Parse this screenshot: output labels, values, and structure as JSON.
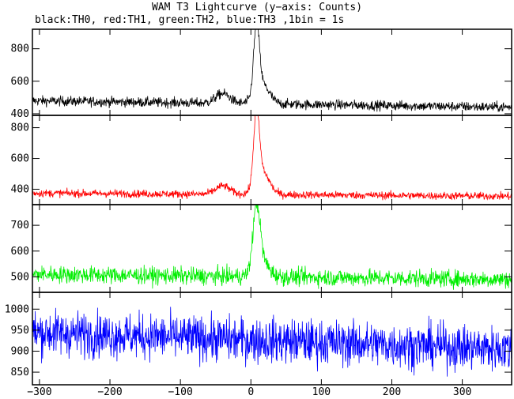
{
  "title": "WAM T3 Lightcurve (y−axis: Counts)",
  "subtitle": "black:TH0, red:TH1, green:TH2, blue:TH3 ,1bin = 1s",
  "chart_data": {
    "type": "line",
    "xlim": [
      -310,
      370
    ],
    "x_ticks": [
      -300,
      -200,
      -100,
      0,
      100,
      200,
      300
    ],
    "x_tick_labels": [
      "−300",
      "−200",
      "−100",
      "0",
      "100",
      "200",
      "300"
    ],
    "bin_seconds": 1,
    "panels": [
      {
        "name": "TH0",
        "color": "#000000",
        "ylim": [
          390,
          920
        ],
        "y_ticks": [
          400,
          600,
          800
        ],
        "baseline": 480,
        "noise": 22,
        "baseline_end": 440,
        "features": [
          {
            "x": -40,
            "amp": 60,
            "width": 10
          },
          {
            "x": 8,
            "amp": 420,
            "width": 4
          },
          {
            "x": 16,
            "amp": 120,
            "width": 10
          }
        ]
      },
      {
        "name": "TH1",
        "color": "#ff0000",
        "ylim": [
          300,
          880
        ],
        "y_ticks": [
          400,
          600,
          800
        ],
        "baseline": 375,
        "noise": 18,
        "baseline_end": 355,
        "features": [
          {
            "x": -40,
            "amp": 55,
            "width": 10
          },
          {
            "x": 8,
            "amp": 460,
            "width": 4
          },
          {
            "x": 16,
            "amp": 150,
            "width": 10
          }
        ]
      },
      {
        "name": "TH2",
        "color": "#00ee00",
        "ylim": [
          440,
          780
        ],
        "y_ticks": [
          500,
          600,
          700
        ],
        "baseline": 510,
        "noise": 24,
        "baseline_end": 490,
        "features": [
          {
            "x": 8,
            "amp": 240,
            "width": 5
          },
          {
            "x": 15,
            "amp": 60,
            "width": 10
          }
        ]
      },
      {
        "name": "TH3",
        "color": "#0000ff",
        "ylim": [
          820,
          1040
        ],
        "y_ticks": [
          850,
          900,
          950,
          1000
        ],
        "baseline": 945,
        "noise": 38,
        "baseline_end": 905,
        "features": []
      }
    ]
  }
}
